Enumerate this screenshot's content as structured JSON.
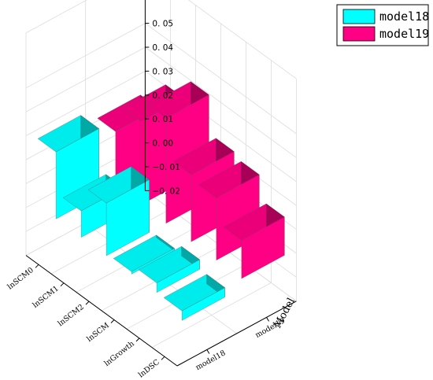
{
  "chart_data": {
    "type": "bar",
    "categories": [
      "lnDSC",
      "lnGrowth",
      "lnSCM",
      "lnSCM2",
      "lnSCM1",
      "lnSCM0"
    ],
    "series": [
      {
        "name": "model18",
        "values": [
          -0.004,
          0.004,
          0.001,
          0.022,
          0.011,
          0.028
        ],
        "color": "#00ffff"
      },
      {
        "name": "model19",
        "values": [
          0.016,
          0.026,
          0.028,
          0.044,
          0.035,
          0.023
        ],
        "color": "#ff0084"
      }
    ],
    "model_axis": {
      "title": "Model",
      "ticks": [
        "model18",
        "model19"
      ]
    },
    "value_axis": {
      "ticks": [
        "0. 05",
        "0. 04",
        "0. 03",
        "0. 02",
        "0. 01",
        "0. 00",
        "−0. 01",
        "−0. 02"
      ],
      "range": [
        -0.02,
        0.055
      ]
    },
    "legend": {
      "placement": "top-right"
    },
    "grid": true
  }
}
